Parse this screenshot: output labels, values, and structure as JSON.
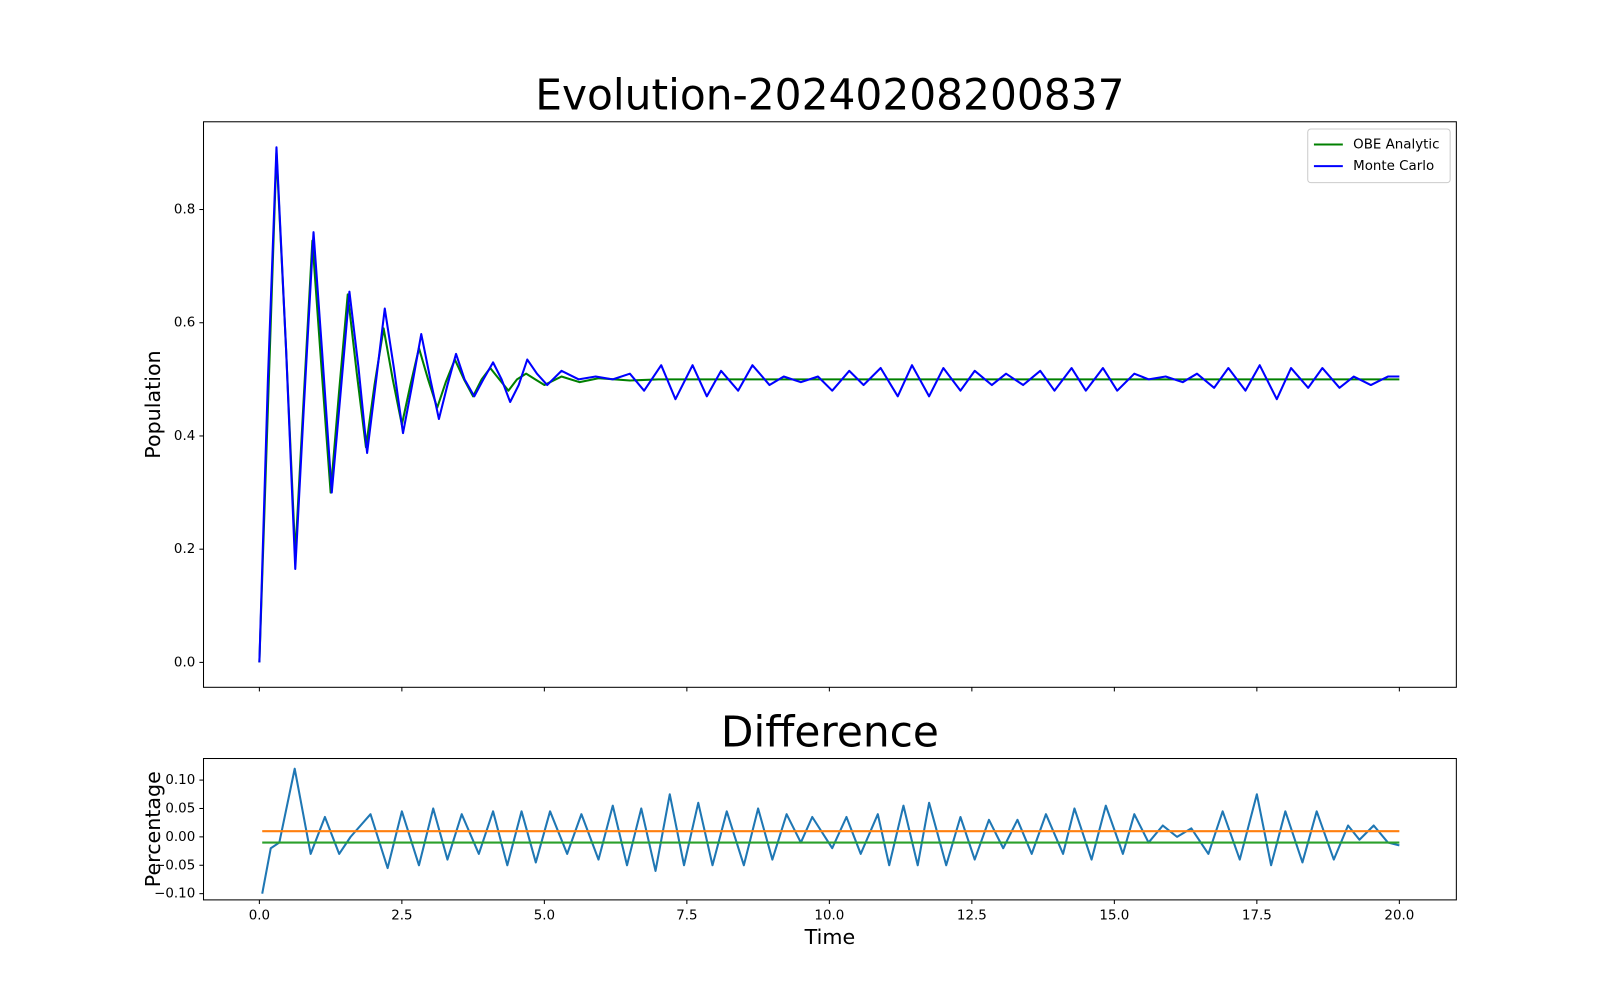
{
  "chart_data": [
    {
      "type": "line",
      "title": "Evolution-20240208200837",
      "ylabel": "Population",
      "xlim": [
        -0.98,
        21.0
      ],
      "ylim": [
        -0.044,
        0.955
      ],
      "yticks": [
        {
          "value": 0.0,
          "label": "0.0"
        },
        {
          "value": 0.2,
          "label": "0.2"
        },
        {
          "value": 0.4,
          "label": "0.4"
        },
        {
          "value": 0.6,
          "label": "0.6"
        },
        {
          "value": 0.8,
          "label": "0.8"
        }
      ],
      "legend": "upper right",
      "series": [
        {
          "name": "OBE Analytic",
          "color": "#008000",
          "x": [
            0,
            0.15,
            0.3,
            0.47,
            0.63,
            0.78,
            0.93,
            1.09,
            1.25,
            1.4,
            1.55,
            1.71,
            1.87,
            2.02,
            2.18,
            2.34,
            2.5,
            2.65,
            2.8,
            2.96,
            3.12,
            3.27,
            3.43,
            3.59,
            3.75,
            3.9,
            4.05,
            4.21,
            4.37,
            4.52,
            4.68,
            4.84,
            5.0,
            5.3,
            5.62,
            5.95,
            6.5,
            7.0,
            8,
            10,
            15,
            20
          ],
          "values": [
            0,
            0.45,
            0.9,
            0.55,
            0.19,
            0.47,
            0.745,
            0.52,
            0.3,
            0.48,
            0.65,
            0.51,
            0.38,
            0.49,
            0.59,
            0.5,
            0.42,
            0.49,
            0.555,
            0.5,
            0.45,
            0.495,
            0.535,
            0.5,
            0.47,
            0.5,
            0.52,
            0.5,
            0.48,
            0.5,
            0.51,
            0.5,
            0.49,
            0.505,
            0.495,
            0.502,
            0.498,
            0.5,
            0.5,
            0.5,
            0.5,
            0.5
          ]
        },
        {
          "name": "Monte Carlo",
          "color": "#0000ff",
          "x": [
            0,
            0.15,
            0.3,
            0.47,
            0.63,
            0.78,
            0.95,
            1.1,
            1.27,
            1.42,
            1.58,
            1.74,
            1.89,
            2.05,
            2.2,
            2.36,
            2.52,
            2.68,
            2.84,
            3.0,
            3.15,
            3.3,
            3.45,
            3.6,
            3.77,
            3.93,
            4.1,
            4.25,
            4.4,
            4.55,
            4.7,
            4.87,
            5.05,
            5.3,
            5.6,
            5.9,
            6.2,
            6.5,
            6.75,
            7.05,
            7.3,
            7.6,
            7.85,
            8.1,
            8.4,
            8.65,
            8.95,
            9.2,
            9.5,
            9.8,
            10.05,
            10.35,
            10.6,
            10.9,
            11.2,
            11.45,
            11.75,
            12.0,
            12.3,
            12.55,
            12.85,
            13.1,
            13.4,
            13.7,
            13.95,
            14.25,
            14.5,
            14.8,
            15.05,
            15.35,
            15.6,
            15.9,
            16.2,
            16.45,
            16.75,
            17.0,
            17.3,
            17.55,
            17.85,
            18.1,
            18.4,
            18.65,
            18.95,
            19.2,
            19.5,
            19.8,
            20
          ],
          "values": [
            0,
            0.5,
            0.91,
            0.55,
            0.165,
            0.45,
            0.76,
            0.55,
            0.3,
            0.47,
            0.655,
            0.52,
            0.37,
            0.5,
            0.625,
            0.52,
            0.405,
            0.49,
            0.58,
            0.5,
            0.43,
            0.49,
            0.545,
            0.5,
            0.47,
            0.5,
            0.53,
            0.5,
            0.46,
            0.49,
            0.535,
            0.51,
            0.49,
            0.515,
            0.5,
            0.505,
            0.5,
            0.51,
            0.48,
            0.525,
            0.465,
            0.525,
            0.47,
            0.515,
            0.48,
            0.525,
            0.49,
            0.505,
            0.495,
            0.505,
            0.48,
            0.515,
            0.49,
            0.52,
            0.47,
            0.525,
            0.47,
            0.52,
            0.48,
            0.515,
            0.49,
            0.51,
            0.49,
            0.515,
            0.48,
            0.52,
            0.48,
            0.52,
            0.48,
            0.51,
            0.5,
            0.505,
            0.495,
            0.51,
            0.485,
            0.52,
            0.48,
            0.525,
            0.465,
            0.52,
            0.485,
            0.52,
            0.485,
            0.505,
            0.49,
            0.505,
            0.505
          ]
        }
      ]
    },
    {
      "type": "line",
      "title": "Difference",
      "xlabel": "Time",
      "ylabel": "Percentage",
      "xlim": [
        -0.98,
        21.0
      ],
      "ylim": [
        -0.111,
        0.138
      ],
      "xticks": [
        {
          "value": 0,
          "label": "0.0"
        },
        {
          "value": 2.5,
          "label": "2.5"
        },
        {
          "value": 5,
          "label": "5.0"
        },
        {
          "value": 7.5,
          "label": "7.5"
        },
        {
          "value": 10,
          "label": "10.0"
        },
        {
          "value": 12.5,
          "label": "12.5"
        },
        {
          "value": 15,
          "label": "15.0"
        },
        {
          "value": 17.5,
          "label": "17.5"
        },
        {
          "value": 20,
          "label": "20.0"
        }
      ],
      "yticks": [
        {
          "value": -0.1,
          "label": "−0.10"
        },
        {
          "value": -0.05,
          "label": "−0.05"
        },
        {
          "value": 0,
          "label": "0.00"
        },
        {
          "value": 0.05,
          "label": "0.05"
        },
        {
          "value": 0.1,
          "label": "0.10"
        }
      ],
      "series": [
        {
          "color": "#1f77b4",
          "x": [
            0.05,
            0.2,
            0.35,
            0.62,
            0.9,
            1.15,
            1.4,
            1.6,
            1.95,
            2.25,
            2.5,
            2.8,
            3.05,
            3.3,
            3.55,
            3.85,
            4.1,
            4.35,
            4.6,
            4.85,
            5.1,
            5.4,
            5.65,
            5.95,
            6.2,
            6.45,
            6.7,
            6.95,
            7.2,
            7.45,
            7.7,
            7.95,
            8.2,
            8.5,
            8.75,
            9.0,
            9.25,
            9.5,
            9.7,
            10.05,
            10.3,
            10.55,
            10.85,
            11.05,
            11.3,
            11.55,
            11.75,
            12.05,
            12.3,
            12.55,
            12.8,
            13.05,
            13.3,
            13.55,
            13.8,
            14.1,
            14.3,
            14.6,
            14.85,
            15.15,
            15.35,
            15.6,
            15.85,
            16.1,
            16.35,
            16.65,
            16.9,
            17.2,
            17.5,
            17.75,
            18.0,
            18.3,
            18.55,
            18.85,
            19.1,
            19.3,
            19.55,
            19.8,
            20
          ],
          "values": [
            -0.1,
            -0.02,
            -0.01,
            0.12,
            -0.03,
            0.035,
            -0.03,
            0.0,
            0.04,
            -0.055,
            0.045,
            -0.05,
            0.05,
            -0.04,
            0.04,
            -0.03,
            0.045,
            -0.05,
            0.045,
            -0.045,
            0.045,
            -0.03,
            0.04,
            -0.04,
            0.055,
            -0.05,
            0.05,
            -0.06,
            0.075,
            -0.05,
            0.06,
            -0.05,
            0.045,
            -0.05,
            0.05,
            -0.04,
            0.04,
            -0.01,
            0.035,
            -0.02,
            0.035,
            -0.03,
            0.04,
            -0.05,
            0.055,
            -0.05,
            0.06,
            -0.05,
            0.035,
            -0.04,
            0.03,
            -0.02,
            0.03,
            -0.03,
            0.04,
            -0.03,
            0.05,
            -0.04,
            0.055,
            -0.03,
            0.04,
            -0.01,
            0.02,
            0.0,
            0.015,
            -0.03,
            0.045,
            -0.04,
            0.075,
            -0.05,
            0.045,
            -0.045,
            0.045,
            -0.04,
            0.02,
            -0.005,
            0.02,
            -0.01,
            -0.015
          ]
        },
        {
          "color": "#ff7f0e",
          "x": [
            0.05,
            20
          ],
          "values": [
            0.01,
            0.01
          ]
        },
        {
          "color": "#2ca02c",
          "x": [
            0.05,
            20
          ],
          "values": [
            -0.01,
            -0.01
          ]
        }
      ]
    }
  ]
}
